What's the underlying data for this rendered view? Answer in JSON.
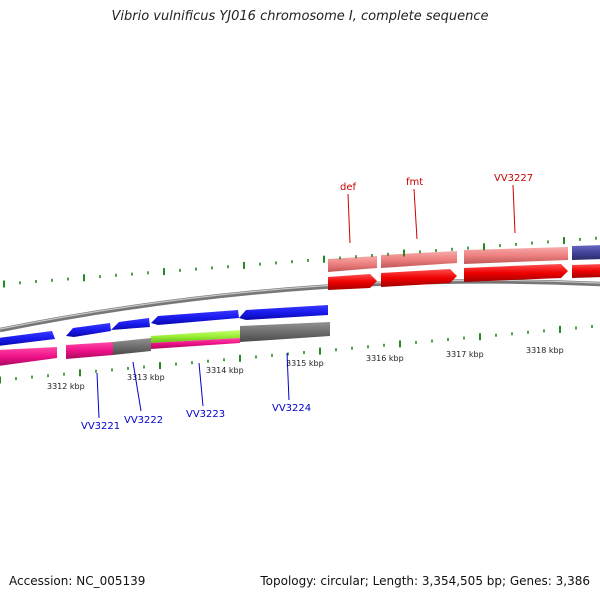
{
  "title": "Vibrio vulnificus YJ016 chromosome I, complete sequence",
  "footer": {
    "accession": "Accession: NC_005139",
    "stats": "Topology: circular; Length: 3,354,505 bp; Genes: 3,386"
  },
  "scale_labels": [
    "3312 kbp",
    "3313 kbp",
    "3314 kbp",
    "3315 kbp",
    "3316 kbp",
    "3317 kbp",
    "3318 kbp"
  ],
  "reverse_gene_labels": [
    "VV3221",
    "VV3222",
    "VV3223",
    "VV3224"
  ],
  "forward_gene_labels": [
    "def",
    "fmt",
    "VV3227"
  ],
  "colors": {
    "reverse_label": "#0000cc",
    "forward_label": "#cc0000",
    "tick": "#228b22",
    "backbone": "#888888",
    "gene_blue": "#1a1aee",
    "gene_pink": "#ee1188",
    "gene_gray": "#6e6e6e",
    "gene_lime": "#99ee33",
    "gene_salmon": "#ee8080",
    "gene_red": "#ee0000",
    "gene_purple": "#44449a"
  }
}
